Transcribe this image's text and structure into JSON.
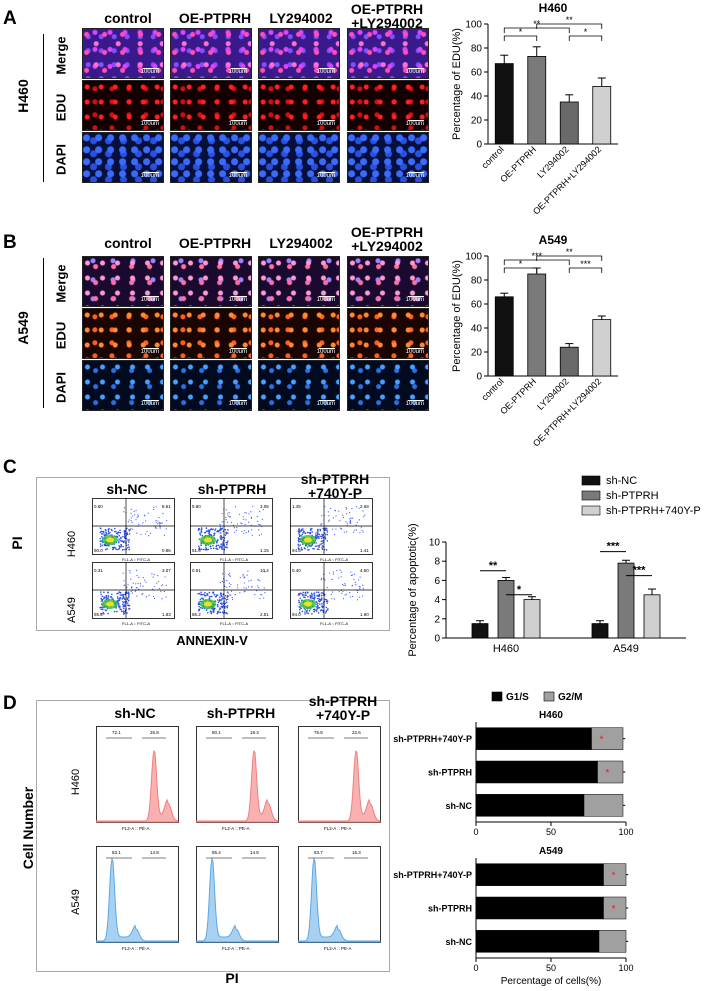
{
  "panels": {
    "A": {
      "label": "A",
      "cell_line": "H460",
      "columns": [
        "control",
        "OE-PTPRH",
        "LY294002"
      ],
      "col4_line1": "OE-PTPRH",
      "col4_line2": "+LY294002",
      "rows": [
        "Merge",
        "EDU",
        "DAPI"
      ],
      "scale": "100um"
    },
    "B": {
      "label": "B",
      "cell_line": "A549",
      "columns": [
        "control",
        "OE-PTPRH",
        "LY294002"
      ],
      "col4_line1": "OE-PTPRH",
      "col4_line2": "+LY294002",
      "rows": [
        "Merge",
        "EDU",
        "DAPI"
      ],
      "scale": "100um"
    },
    "C": {
      "label": "C",
      "columns": [
        "sh-NC",
        "sh-PTPRH"
      ],
      "col3_line1": "sh-PTPRH",
      "col3_line2": "+740Y-P",
      "rows": [
        "H460",
        "A549"
      ],
      "y_title": "PI",
      "x_title": "ANNEXIN-V",
      "h460_quadrants": [
        [
          "0.60",
          "8.61",
          "0.86",
          "90.0"
        ],
        [
          "5.80",
          "3.06",
          "1.15",
          "91.0"
        ],
        [
          "1.45",
          "2.69",
          "1.41",
          "94.5"
        ]
      ],
      "a549_quadrants": [
        [
          "0.31",
          "3.07",
          "1.83",
          "95.8"
        ],
        [
          "0.51",
          "10.4",
          "2.51",
          "86.2"
        ],
        [
          "0.40",
          "4.60",
          "1.90",
          "94.0"
        ]
      ],
      "flow_x_axis": "FL1-A :: FITC-A",
      "flow_y_axis": "FL2-A :: PE-A"
    },
    "D": {
      "label": "D",
      "columns": [
        "sh-NC",
        "sh-PTPRH"
      ],
      "col3_line1": "sh-PTPRH",
      "col3_line2": "+740Y-P",
      "rows": [
        "H460",
        "A549"
      ],
      "y_title": "Cell Number",
      "x_title": "PI",
      "hist_x_axis": "FL2-A :: PE-A",
      "h460_gates": [
        [
          "72.1",
          "25.8"
        ],
        [
          "80.1",
          "18.3"
        ],
        [
          "76.8",
          "22.6"
        ]
      ],
      "a549_gates": [
        [
          "83.1",
          "14.8"
        ],
        [
          "85.4",
          "14.8"
        ],
        [
          "83.7",
          "16.3"
        ]
      ]
    }
  },
  "chart_data": [
    {
      "type": "bar",
      "title": "H460",
      "ylabel": "Percentage of EDU(%)",
      "categories": [
        "control",
        "OE-PTPRH",
        "LY294002",
        "OE-PTPRH+LY294002"
      ],
      "values": [
        67,
        73,
        35,
        48
      ],
      "errors": [
        7,
        8,
        6,
        7
      ],
      "colors": [
        "#111111",
        "#7a7a7a",
        "#6a6a6a",
        "#d0d0d0"
      ],
      "ylim": [
        0,
        100
      ],
      "yticks": [
        0,
        20,
        40,
        60,
        80,
        100
      ],
      "sig": [
        "*",
        "*",
        "**",
        "**"
      ]
    },
    {
      "type": "bar",
      "title": "A549",
      "ylabel": "Percentage of EDU(%)",
      "categories": [
        "control",
        "OE-PTPRH",
        "LY294002",
        "OE-PTPRH+LY294002"
      ],
      "values": [
        66,
        85,
        24,
        47
      ],
      "errors": [
        3,
        5,
        3,
        3
      ],
      "colors": [
        "#111111",
        "#7a7a7a",
        "#6a6a6a",
        "#d0d0d0"
      ],
      "ylim": [
        0,
        100
      ],
      "yticks": [
        0,
        20,
        40,
        60,
        80,
        100
      ],
      "sig": [
        "*",
        "***",
        "***",
        "**"
      ]
    },
    {
      "type": "bar",
      "ylabel": "Percentage of apoptotic(%)",
      "categories": [
        "H460",
        "A549"
      ],
      "series": [
        {
          "name": "sh-NC",
          "values": [
            1.5,
            1.5
          ],
          "errors": [
            0.3,
            0.3
          ],
          "color": "#111111"
        },
        {
          "name": "sh-PTPRH",
          "values": [
            6.0,
            7.8
          ],
          "errors": [
            0.3,
            0.3
          ],
          "color": "#7a7a7a"
        },
        {
          "name": "sh-PTPRH+740Y-P",
          "values": [
            4.0,
            4.5
          ],
          "errors": [
            0.3,
            0.6
          ],
          "color": "#d0d0d0"
        }
      ],
      "ylim": [
        0,
        10
      ],
      "yticks": [
        0,
        2,
        4,
        6,
        8,
        10
      ],
      "sig": [
        "**",
        "*",
        "***",
        "***"
      ]
    },
    {
      "type": "bar",
      "title": "H460",
      "xlabel": "Percentage of cells(%)",
      "categories": [
        "sh-PTPRH+740Y-P",
        "sh-PTPRH",
        "sh-NC"
      ],
      "series": [
        {
          "name": "G1/S",
          "values": [
            77,
            81,
            72
          ],
          "color": "#000000"
        },
        {
          "name": "G2/M",
          "values": [
            21,
            17,
            26
          ],
          "color": "#a0a0a0"
        }
      ],
      "xlim": [
        0,
        100
      ],
      "xticks": [
        0,
        50,
        100
      ],
      "sig": [
        "*",
        "*",
        ""
      ]
    },
    {
      "type": "bar",
      "title": "A549",
      "xlabel": "Percentage of cells(%)",
      "categories": [
        "sh-PTPRH+740Y-P",
        "sh-PTPRH",
        "sh-NC"
      ],
      "series": [
        {
          "name": "G1/S",
          "values": [
            85,
            85,
            82
          ],
          "color": "#000000"
        },
        {
          "name": "G2/M",
          "values": [
            15,
            15,
            18
          ],
          "color": "#a0a0a0"
        }
      ],
      "xlim": [
        0,
        100
      ],
      "xticks": [
        0,
        50,
        100
      ],
      "sig": [
        "*",
        "*",
        ""
      ]
    }
  ]
}
